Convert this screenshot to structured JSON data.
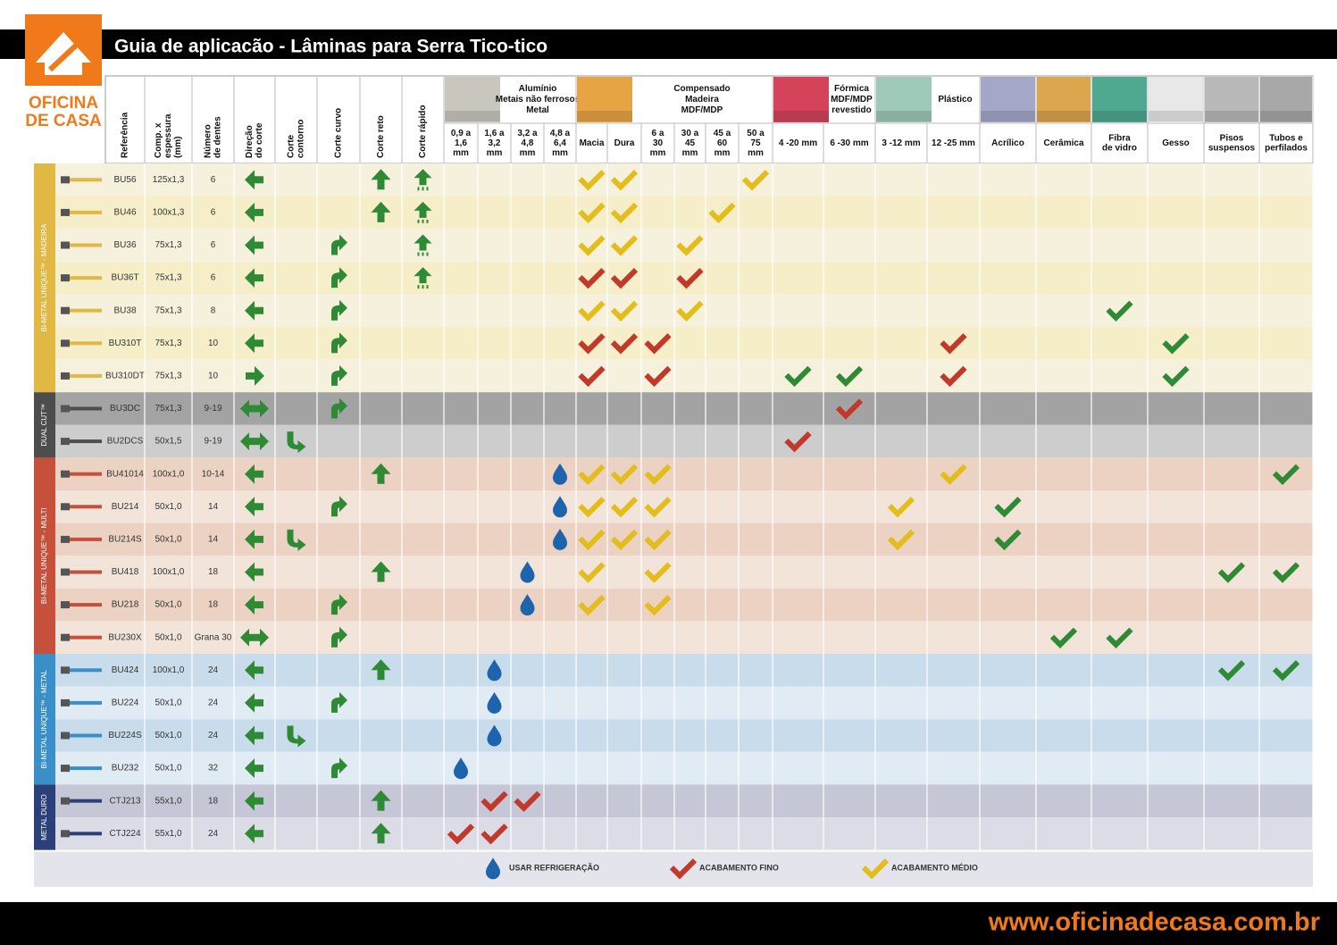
{
  "header": {
    "title": "Guia de aplicacão - Lâminas para Serra Tico-tico",
    "logo": [
      "OFICINA",
      "DE CASA"
    ]
  },
  "info_columns": [
    [
      "Referência"
    ],
    [
      "Comp. x",
      "espessura",
      "(mm)"
    ],
    [
      "Número",
      "de dentes"
    ],
    [
      "Direção",
      "do corte"
    ],
    [
      "Corte",
      "contorno"
    ],
    [
      "Corte curvo"
    ],
    [
      "Corte reto"
    ],
    [
      "Corte rápido"
    ]
  ],
  "material_groups": [
    {
      "label": [
        "Alumínio",
        "Metais não ferrosos",
        "Metal"
      ],
      "swatch": "#c9c6bd",
      "columns": [
        [
          "0,9 a",
          "1,6",
          "mm"
        ],
        [
          "1,6 a",
          "3,2",
          "mm"
        ],
        [
          "3,2 a",
          "4,8",
          "mm"
        ],
        [
          "4,8 a",
          "6,4",
          "mm"
        ]
      ]
    },
    {
      "label": [
        "Compensado",
        "Madeira",
        "MDF/MDP"
      ],
      "swatch": "#e7a445",
      "columns": [
        [
          "Macia"
        ],
        [
          "Dura"
        ],
        [
          "6 a",
          "30",
          "mm"
        ],
        [
          "30 a",
          "45",
          "mm"
        ],
        [
          "45 a",
          "60",
          "mm"
        ],
        [
          "50 a",
          "75",
          "mm"
        ]
      ]
    },
    {
      "label": [
        "Fórmica",
        "MDF/MDP",
        "revestido"
      ],
      "swatch": "#d4435a",
      "columns": [
        [
          "4 -20 mm"
        ],
        [
          "6 -30 mm"
        ]
      ]
    },
    {
      "label": [
        "Plástico"
      ],
      "swatch": "#9fc9b8",
      "columns": [
        [
          "3 -12 mm"
        ],
        [
          "12 -25 mm"
        ]
      ]
    },
    {
      "swatch": "#a5a7c9",
      "columns": [
        [
          "Acrílico"
        ]
      ]
    },
    {
      "swatch": "#dba64e",
      "columns": [
        [
          "Cerâmica"
        ]
      ]
    },
    {
      "swatch": "#4fa890",
      "columns": [
        [
          "Fibra",
          "de vidro"
        ]
      ]
    },
    {
      "swatch": "#e8e8e8",
      "columns": [
        [
          "Gesso"
        ]
      ]
    },
    {
      "swatch": "#b9b9b9",
      "columns": [
        [
          "Pisos",
          "suspensos"
        ]
      ]
    },
    {
      "swatch": "#a8a8a8",
      "columns": [
        [
          "Tubos e",
          "perfilados"
        ]
      ]
    }
  ],
  "sections": [
    {
      "label": "BI-METAL UNIQUE™ - MADEIRA",
      "color": "#e2b845",
      "row_colors": [
        "#f6f1dc",
        "#f5eec8"
      ],
      "rows": [
        {
          "ref": "BU56",
          "size": "125x1,3",
          "teeth": 6,
          "marks": [
            "left",
            null,
            null,
            "straight",
            "fast",
            null,
            null,
            null,
            null,
            "medium",
            "medium",
            null,
            null,
            null,
            "medium",
            null,
            null,
            null,
            null,
            null,
            null,
            null,
            null,
            null,
            null
          ]
        },
        {
          "ref": "BU46",
          "size": "100x1,3",
          "teeth": 6,
          "marks": [
            "left",
            null,
            null,
            "straight",
            "fast",
            null,
            null,
            null,
            null,
            "medium",
            "medium",
            null,
            null,
            "medium",
            null,
            null,
            null,
            null,
            null,
            null,
            null,
            null,
            null,
            null,
            null
          ]
        },
        {
          "ref": "BU36",
          "size": "75x1,3",
          "teeth": 6,
          "marks": [
            "left",
            null,
            "curve",
            null,
            "fast",
            null,
            null,
            null,
            null,
            "medium",
            "medium",
            null,
            "medium",
            null,
            null,
            null,
            null,
            null,
            null,
            null,
            null,
            null,
            null,
            null,
            null
          ]
        },
        {
          "ref": "BU36T",
          "size": "75x1,3",
          "teeth": 6,
          "marks": [
            "left",
            null,
            "curve",
            null,
            "fast",
            null,
            null,
            null,
            null,
            "fine",
            "fine",
            null,
            "fine",
            null,
            null,
            null,
            null,
            null,
            null,
            null,
            null,
            null,
            null,
            null,
            null
          ]
        },
        {
          "ref": "BU38",
          "size": "75x1,3",
          "teeth": 8,
          "marks": [
            "left",
            null,
            "curve",
            null,
            null,
            null,
            null,
            null,
            null,
            "medium",
            "medium",
            null,
            "medium",
            null,
            null,
            null,
            null,
            null,
            null,
            null,
            null,
            "ok",
            null,
            null,
            null
          ]
        },
        {
          "ref": "BU310T",
          "size": "75x1,3",
          "teeth": 10,
          "marks": [
            "left",
            null,
            "curve",
            null,
            null,
            null,
            null,
            null,
            null,
            "fine",
            "fine",
            "fine",
            null,
            null,
            null,
            null,
            null,
            null,
            "fine",
            null,
            null,
            null,
            "ok",
            null,
            null
          ]
        },
        {
          "ref": "BU310DT",
          "size": "75x1,3",
          "teeth": 10,
          "marks": [
            "right",
            null,
            "curve",
            null,
            null,
            null,
            null,
            null,
            null,
            "fine",
            null,
            "fine",
            null,
            null,
            null,
            "ok",
            "ok",
            null,
            "fine",
            null,
            null,
            null,
            "ok",
            null,
            null
          ]
        }
      ]
    },
    {
      "label": "DUAL CUT™",
      "color": "#4d4d4d",
      "row_colors": [
        "#a3a3a3",
        "#cdcdcd"
      ],
      "rows": [
        {
          "ref": "BU3DC",
          "size": "75x1,3",
          "teeth": "9-19",
          "marks": [
            "both",
            null,
            "curve",
            null,
            null,
            null,
            null,
            null,
            null,
            null,
            null,
            null,
            null,
            null,
            null,
            null,
            "fine",
            null,
            null,
            null,
            null,
            null,
            null,
            null,
            null
          ]
        },
        {
          "ref": "BU2DCS",
          "size": "50x1,5",
          "teeth": "9-19",
          "marks": [
            "both",
            "contour",
            null,
            null,
            null,
            null,
            null,
            null,
            null,
            null,
            null,
            null,
            null,
            null,
            null,
            "fine",
            null,
            null,
            null,
            null,
            null,
            null,
            null,
            null,
            null
          ]
        }
      ]
    },
    {
      "label": "BI-METAL UNIQUE™ - MULTI",
      "color": "#c5503b",
      "row_colors": [
        "#ebd2c2",
        "#f3e4d9"
      ],
      "rows": [
        {
          "ref": "BU41014",
          "size": "100x1,0",
          "teeth": "10-14",
          "marks": [
            "left",
            null,
            null,
            "straight",
            null,
            null,
            null,
            null,
            "drop",
            "medium",
            "medium",
            "medium",
            null,
            null,
            null,
            null,
            null,
            null,
            "medium",
            null,
            null,
            null,
            null,
            null,
            "ok"
          ]
        },
        {
          "ref": "BU214",
          "size": "50x1,0",
          "teeth": 14,
          "marks": [
            "left",
            null,
            "curve",
            null,
            null,
            null,
            null,
            null,
            "drop",
            "medium",
            "medium",
            "medium",
            null,
            null,
            null,
            null,
            null,
            "medium",
            null,
            "ok",
            null,
            null,
            null,
            null,
            null
          ]
        },
        {
          "ref": "BU214S",
          "size": "50x1,0",
          "teeth": 14,
          "marks": [
            "left",
            "contour",
            null,
            null,
            null,
            null,
            null,
            null,
            "drop",
            "medium",
            "medium",
            "medium",
            null,
            null,
            null,
            null,
            null,
            "medium",
            null,
            "ok",
            null,
            null,
            null,
            null,
            null
          ]
        },
        {
          "ref": "BU418",
          "size": "100x1,0",
          "teeth": 18,
          "marks": [
            "left",
            null,
            null,
            "straight",
            null,
            null,
            null,
            "drop",
            null,
            "medium",
            null,
            "medium",
            null,
            null,
            null,
            null,
            null,
            null,
            null,
            null,
            null,
            null,
            null,
            "ok",
            "ok"
          ]
        },
        {
          "ref": "BU218",
          "size": "50x1,0",
          "teeth": 18,
          "marks": [
            "left",
            null,
            "curve",
            null,
            null,
            null,
            null,
            "drop",
            null,
            "medium",
            null,
            "medium",
            null,
            null,
            null,
            null,
            null,
            null,
            null,
            null,
            null,
            null,
            null,
            null,
            null
          ]
        },
        {
          "ref": "BU230X",
          "size": "50x1,0",
          "teeth": "Grana 30",
          "marks": [
            "both",
            null,
            "curve",
            null,
            null,
            null,
            null,
            null,
            null,
            null,
            null,
            null,
            null,
            null,
            null,
            null,
            null,
            null,
            null,
            null,
            "ok",
            "ok",
            null,
            null,
            null
          ]
        }
      ]
    },
    {
      "label": "BI-METAL UNIQUE™ - METAL",
      "color": "#3b8fc7",
      "row_colors": [
        "#c8dceb",
        "#e0ebf4"
      ],
      "rows": [
        {
          "ref": "BU424",
          "size": "100x1,0",
          "teeth": 24,
          "marks": [
            "left",
            null,
            null,
            "straight",
            null,
            null,
            "drop",
            null,
            null,
            null,
            null,
            null,
            null,
            null,
            null,
            null,
            null,
            null,
            null,
            null,
            null,
            null,
            null,
            "ok",
            "ok"
          ]
        },
        {
          "ref": "BU224",
          "size": "50x1,0",
          "teeth": 24,
          "marks": [
            "left",
            null,
            "curve",
            null,
            null,
            null,
            "drop",
            null,
            null,
            null,
            null,
            null,
            null,
            null,
            null,
            null,
            null,
            null,
            null,
            null,
            null,
            null,
            null,
            null,
            null
          ]
        },
        {
          "ref": "BU224S",
          "size": "50x1,0",
          "teeth": 24,
          "marks": [
            "left",
            "contour",
            null,
            null,
            null,
            null,
            "drop",
            null,
            null,
            null,
            null,
            null,
            null,
            null,
            null,
            null,
            null,
            null,
            null,
            null,
            null,
            null,
            null,
            null,
            null
          ]
        },
        {
          "ref": "BU232",
          "size": "50x1,0",
          "teeth": 32,
          "marks": [
            "left",
            null,
            "curve",
            null,
            null,
            "drop",
            null,
            null,
            null,
            null,
            null,
            null,
            null,
            null,
            null,
            null,
            null,
            null,
            null,
            null,
            null,
            null,
            null,
            null,
            null
          ]
        }
      ]
    },
    {
      "label": "METAL DURO",
      "color": "#2b3f78",
      "row_colors": [
        "#c5c6d6",
        "#dcdce7"
      ],
      "rows": [
        {
          "ref": "CTJ213",
          "size": "55x1,0",
          "teeth": 18,
          "marks": [
            "left",
            null,
            null,
            "straight",
            null,
            null,
            "fine",
            "fine",
            null,
            null,
            null,
            null,
            null,
            null,
            null,
            null,
            null,
            null,
            null,
            null,
            null,
            null,
            null,
            null,
            null
          ]
        },
        {
          "ref": "CTJ224",
          "size": "55x1,0",
          "teeth": 24,
          "marks": [
            "left",
            null,
            null,
            "straight",
            null,
            "fine",
            "fine",
            null,
            null,
            null,
            null,
            null,
            null,
            null,
            null,
            null,
            null,
            null,
            null,
            null,
            null,
            null,
            null,
            null,
            null
          ]
        }
      ]
    }
  ],
  "legend": [
    {
      "icon": "drop",
      "label": "USAR REFRIGERAÇÃO"
    },
    {
      "icon": "fine",
      "label": "ACABAMENTO FINO"
    },
    {
      "icon": "medium",
      "label": "ACABAMENTO MÉDIO"
    }
  ],
  "footer": {
    "url": "www.oficinadecasa.com.br"
  }
}
